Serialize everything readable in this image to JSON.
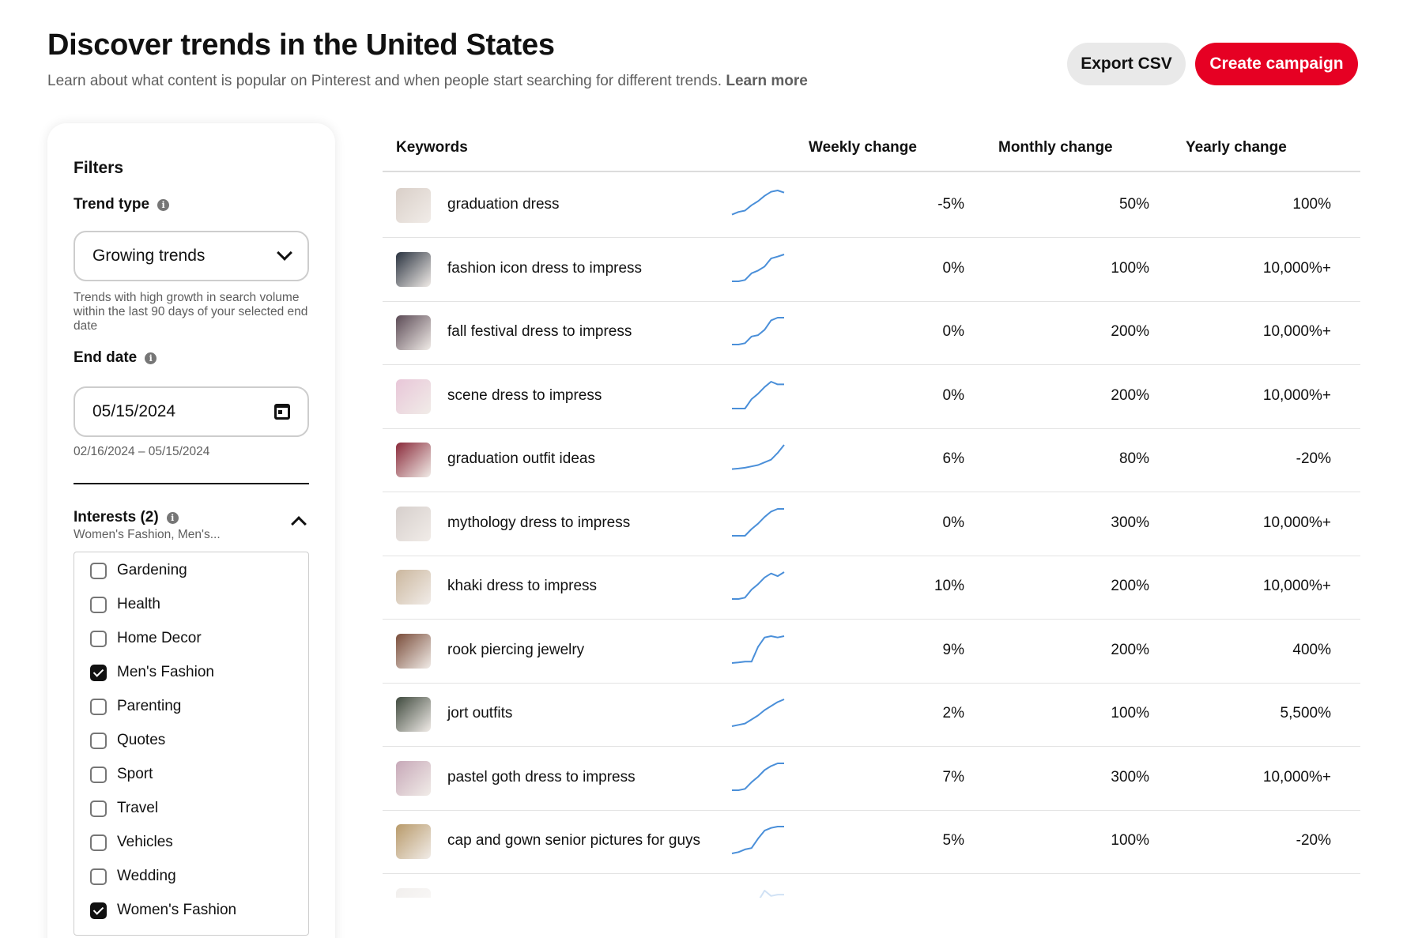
{
  "header": {
    "title": "Discover trends in the United States",
    "subtitle": "Learn about what content is popular on Pinterest and when people start searching for different trends.",
    "learn_more": "Learn more",
    "export_label": "Export CSV",
    "create_label": "Create campaign"
  },
  "filters": {
    "title": "Filters",
    "trend_type_label": "Trend type",
    "trend_type_value": "Growing trends",
    "trend_type_help": "Trends with high growth in search volume within the last 90 days of your selected end date",
    "end_date_label": "End date",
    "end_date_value": "05/15/2024",
    "date_range": "02/16/2024 – 05/15/2024",
    "interests_label": "Interests (2)",
    "interests_summary": "Women's Fashion, Men's...",
    "interests": [
      {
        "label": "Gardening",
        "checked": false
      },
      {
        "label": "Health",
        "checked": false
      },
      {
        "label": "Home Decor",
        "checked": false
      },
      {
        "label": "Men's Fashion",
        "checked": true
      },
      {
        "label": "Parenting",
        "checked": false
      },
      {
        "label": "Quotes",
        "checked": false
      },
      {
        "label": "Sport",
        "checked": false
      },
      {
        "label": "Travel",
        "checked": false
      },
      {
        "label": "Vehicles",
        "checked": false
      },
      {
        "label": "Wedding",
        "checked": false
      },
      {
        "label": "Women's Fashion",
        "checked": true
      }
    ]
  },
  "table": {
    "headers": {
      "keywords": "Keywords",
      "weekly": "Weekly change",
      "monthly": "Monthly change",
      "yearly": "Yearly change"
    },
    "rows": [
      {
        "keyword": "graduation dress",
        "weekly": "-5%",
        "monthly": "50%",
        "yearly": "100%",
        "thumb_color": "#d9cfc8",
        "trend": [
          0.1,
          0.2,
          0.25,
          0.45,
          0.6,
          0.8,
          0.95,
          1.0,
          0.92
        ]
      },
      {
        "keyword": "fashion icon dress to impress",
        "weekly": "0%",
        "monthly": "100%",
        "yearly": "10,000%+",
        "thumb_color": "#2a3340",
        "trend": [
          0.0,
          0.0,
          0.05,
          0.3,
          0.4,
          0.55,
          0.85,
          0.92,
          1.0
        ]
      },
      {
        "keyword": "fall festival dress to impress",
        "weekly": "0%",
        "monthly": "200%",
        "yearly": "10,000%+",
        "thumb_color": "#5b4a55",
        "trend": [
          0.0,
          0.0,
          0.05,
          0.3,
          0.35,
          0.55,
          0.9,
          1.0,
          1.0
        ]
      },
      {
        "keyword": "scene dress to impress",
        "weekly": "0%",
        "monthly": "200%",
        "yearly": "10,000%+",
        "thumb_color": "#e8c6d8",
        "trend": [
          0.0,
          0.0,
          0.0,
          0.35,
          0.55,
          0.8,
          1.0,
          0.9,
          0.9
        ]
      },
      {
        "keyword": "graduation outfit ideas",
        "weekly": "6%",
        "monthly": "80%",
        "yearly": "-20%",
        "thumb_color": "#8a2a3a",
        "trend": [
          0.1,
          0.12,
          0.15,
          0.2,
          0.25,
          0.35,
          0.45,
          0.7,
          1.0
        ]
      },
      {
        "keyword": "mythology dress to impress",
        "weekly": "0%",
        "monthly": "300%",
        "yearly": "10,000%+",
        "thumb_color": "#d6cfcc",
        "trend": [
          0.0,
          0.0,
          0.0,
          0.25,
          0.45,
          0.7,
          0.9,
          1.0,
          1.0
        ]
      },
      {
        "keyword": "khaki dress to impress",
        "weekly": "10%",
        "monthly": "200%",
        "yearly": "10,000%+",
        "thumb_color": "#cbb79e",
        "trend": [
          0.0,
          0.0,
          0.05,
          0.35,
          0.55,
          0.8,
          0.95,
          0.85,
          1.0
        ]
      },
      {
        "keyword": "rook piercing jewelry",
        "weekly": "9%",
        "monthly": "200%",
        "yearly": "400%",
        "thumb_color": "#7a4d3a",
        "trend": [
          0.0,
          0.02,
          0.05,
          0.05,
          0.6,
          0.95,
          1.0,
          0.95,
          1.0
        ]
      },
      {
        "keyword": "jort outfits",
        "weekly": "2%",
        "monthly": "100%",
        "yearly": "5,500%",
        "thumb_color": "#3f4a3e",
        "trend": [
          0.0,
          0.05,
          0.1,
          0.25,
          0.4,
          0.6,
          0.75,
          0.9,
          1.0
        ]
      },
      {
        "keyword": "pastel goth dress to impress",
        "weekly": "7%",
        "monthly": "300%",
        "yearly": "10,000%+",
        "thumb_color": "#c7a8b8",
        "trend": [
          0.0,
          0.0,
          0.05,
          0.3,
          0.5,
          0.75,
          0.9,
          1.0,
          1.0
        ]
      },
      {
        "keyword": "cap and gown senior pictures for guys",
        "weekly": "5%",
        "monthly": "100%",
        "yearly": "-20%",
        "thumb_color": "#b89a6a",
        "trend": [
          0.0,
          0.05,
          0.15,
          0.2,
          0.55,
          0.85,
          0.95,
          1.0,
          1.0
        ]
      }
    ]
  }
}
